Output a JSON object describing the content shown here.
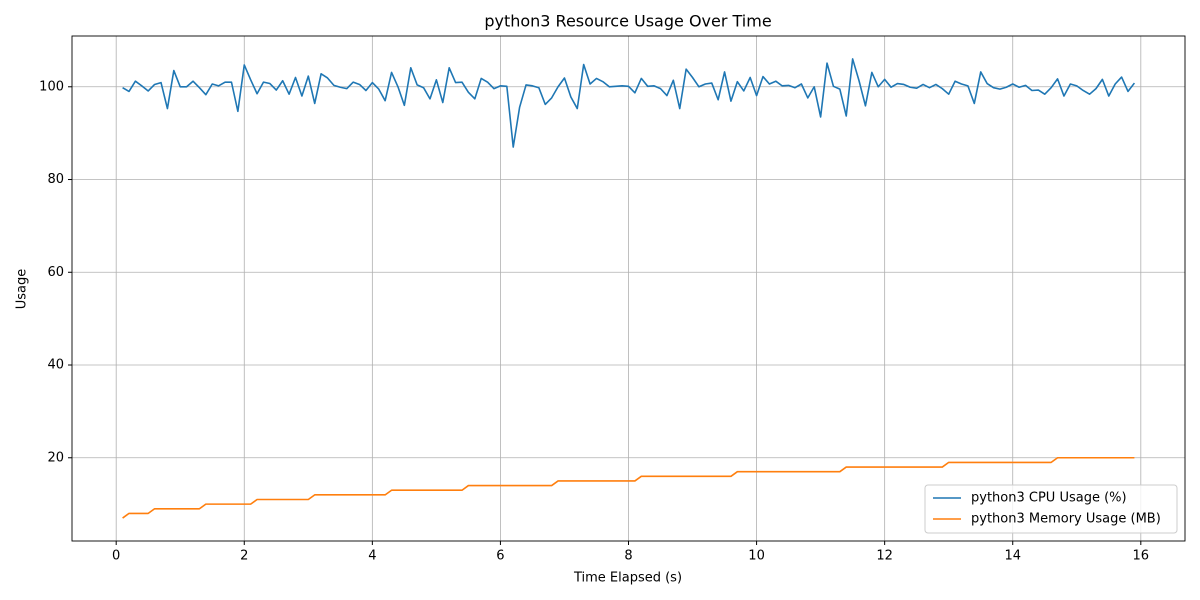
{
  "chart_data": {
    "type": "line",
    "title": "python3 Resource Usage Over Time",
    "xlabel": "Time Elapsed (s)",
    "ylabel": "Usage",
    "x": [
      0.1,
      0.2,
      0.3,
      0.4,
      0.5,
      0.6,
      0.7,
      0.8,
      0.9,
      1.0,
      1.1,
      1.2,
      1.3,
      1.4,
      1.5,
      1.6,
      1.7,
      1.8,
      1.9,
      2.0,
      2.1,
      2.2,
      2.3,
      2.4,
      2.5,
      2.6,
      2.7,
      2.8,
      2.9,
      3.0,
      3.1,
      3.2,
      3.3,
      3.4,
      3.5,
      3.6,
      3.7,
      3.8,
      3.9,
      4.0,
      4.1,
      4.2,
      4.3,
      4.4,
      4.5,
      4.6,
      4.7,
      4.8,
      4.9,
      5.0,
      5.1,
      5.2,
      5.3,
      5.4,
      5.5,
      5.6,
      5.7,
      5.8,
      5.9,
      6.0,
      6.1,
      6.2,
      6.3,
      6.4,
      6.5,
      6.6,
      6.7,
      6.8,
      6.9,
      7.0,
      7.1,
      7.2,
      7.3,
      7.4,
      7.5,
      7.6,
      7.7,
      7.8,
      7.9,
      8.0,
      8.1,
      8.2,
      8.3,
      8.4,
      8.5,
      8.6,
      8.7,
      8.8,
      8.9,
      9.0,
      9.1,
      9.2,
      9.3,
      9.4,
      9.5,
      9.6,
      9.7,
      9.8,
      9.9,
      10.0,
      10.1,
      10.2,
      10.3,
      10.4,
      10.5,
      10.6,
      10.7,
      10.8,
      10.9,
      11.0,
      11.1,
      11.2,
      11.3,
      11.4,
      11.5,
      11.6,
      11.7,
      11.8,
      11.9,
      12.0,
      12.1,
      12.2,
      12.3,
      12.4,
      12.5,
      12.6,
      12.7,
      12.8,
      12.9,
      13.0,
      13.1,
      13.2,
      13.3,
      13.4,
      13.5,
      13.6,
      13.7,
      13.8,
      13.9,
      14.0,
      14.1,
      14.2,
      14.3,
      14.4,
      14.5,
      14.6,
      14.7,
      14.8,
      14.9,
      15.0,
      15.1,
      15.2,
      15.3,
      15.4,
      15.5,
      15.6,
      15.7,
      15.8,
      15.9
    ],
    "series": [
      {
        "name": "python3 CPU Usage (%)",
        "color": "#1f77b4",
        "values": [
          99.8,
          99,
          101.2,
          100.2,
          99.1,
          100.5,
          100.9,
          95.3,
          103.5,
          100,
          100,
          101.2,
          99.8,
          98.3,
          100.6,
          100.2,
          101,
          101,
          94.7,
          104.7,
          101.5,
          98.5,
          101,
          100.7,
          99.3,
          101.3,
          98.4,
          102,
          98,
          102.3,
          96.4,
          102.8,
          101.9,
          100.3,
          99.9,
          99.6,
          101,
          100.5,
          99.2,
          100.9,
          99.5,
          97,
          103.1,
          100,
          96,
          104.1,
          100.4,
          99.8,
          97.4,
          101.5,
          96.6,
          104.1,
          100.9,
          101,
          98.8,
          97.4,
          101.8,
          101,
          99.6,
          100.2,
          100.1,
          87,
          95.6,
          100.4,
          100.2,
          99.8,
          96.2,
          97.6,
          100,
          101.9,
          97.8,
          95.3,
          104.8,
          100.6,
          101.8,
          101.1,
          100,
          100.1,
          100.2,
          100.1,
          98.7,
          101.8,
          100.1,
          100.2,
          99.6,
          98.1,
          101.4,
          95.3,
          103.8,
          102,
          100,
          100.6,
          100.8,
          97.2,
          103.2,
          96.9,
          101.1,
          99.1,
          102,
          98.1,
          102.2,
          100.6,
          101.2,
          100.2,
          100.3,
          99.8,
          100.6,
          97.6,
          100,
          93.5,
          105.1,
          100.1,
          99.5,
          93.7,
          106,
          101.3,
          95.9,
          103.1,
          100,
          101.6,
          99.9,
          100.7,
          100.5,
          99.9,
          99.7,
          100.5,
          99.8,
          100.5,
          99.6,
          98.4,
          101.2,
          100.6,
          100.2,
          96.4,
          103.2,
          100.7,
          99.8,
          99.5,
          99.9,
          100.6,
          99.9,
          100.3,
          99.2,
          99.3,
          98.4,
          99.8,
          101.7,
          98,
          100.6,
          100.2,
          99.2,
          98.4,
          99.6,
          101.6,
          98,
          100.6,
          102.1,
          99,
          100.8
        ]
      },
      {
        "name": "python3 Memory Usage (MB)",
        "color": "#ff7f0e",
        "values": [
          7,
          8,
          8,
          8,
          8,
          9,
          9,
          9,
          9,
          9,
          9,
          9,
          9,
          10,
          10,
          10,
          10,
          10,
          10,
          10,
          10,
          11,
          11,
          11,
          11,
          11,
          11,
          11,
          11,
          11,
          12,
          12,
          12,
          12,
          12,
          12,
          12,
          12,
          12,
          12,
          12,
          12,
          13,
          13,
          13,
          13,
          13,
          13,
          13,
          13,
          13,
          13,
          13,
          13,
          14,
          14,
          14,
          14,
          14,
          14,
          14,
          14,
          14,
          14,
          14,
          14,
          14,
          14,
          15,
          15,
          15,
          15,
          15,
          15,
          15,
          15,
          15,
          15,
          15,
          15,
          15,
          16,
          16,
          16,
          16,
          16,
          16,
          16,
          16,
          16,
          16,
          16,
          16,
          16,
          16,
          16,
          17,
          17,
          17,
          17,
          17,
          17,
          17,
          17,
          17,
          17,
          17,
          17,
          17,
          17,
          17,
          17,
          17,
          18,
          18,
          18,
          18,
          18,
          18,
          18,
          18,
          18,
          18,
          18,
          18,
          18,
          18,
          18,
          18,
          19,
          19,
          19,
          19,
          19,
          19,
          19,
          19,
          19,
          19,
          19,
          19,
          19,
          19,
          19,
          19,
          19,
          20,
          20,
          20,
          20,
          20,
          20,
          20,
          20,
          20,
          20,
          20,
          20,
          20
        ]
      }
    ],
    "xlim": [
      -0.69,
      16.69
    ],
    "xticks": [
      0,
      2,
      4,
      6,
      8,
      10,
      12,
      14,
      16
    ],
    "ylim": [
      2.05,
      110.95
    ],
    "yticks": [
      20,
      40,
      60,
      80,
      100
    ],
    "grid": true,
    "legend": "lower right"
  }
}
